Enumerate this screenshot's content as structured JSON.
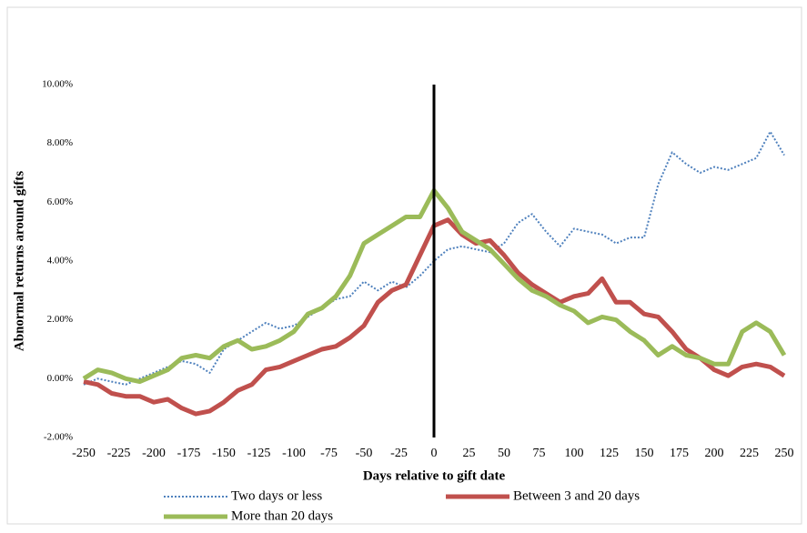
{
  "chart_data": {
    "type": "line",
    "x_label": "Days relative to gift date",
    "y_label": "Abnormal returns around gifts",
    "x": [
      -250,
      -240,
      -230,
      -220,
      -210,
      -200,
      -190,
      -180,
      -170,
      -160,
      -150,
      -140,
      -130,
      -120,
      -110,
      -100,
      -90,
      -80,
      -70,
      -60,
      -50,
      -40,
      -30,
      -20,
      -10,
      0,
      10,
      20,
      30,
      40,
      50,
      60,
      70,
      80,
      90,
      100,
      110,
      120,
      130,
      140,
      150,
      160,
      170,
      180,
      190,
      200,
      210,
      220,
      230,
      240,
      250
    ],
    "series": [
      {
        "name": "Two days or less",
        "color": "#4f81bd",
        "style": "dotted",
        "values": [
          -0.2,
          0,
          -0.1,
          -0.2,
          0,
          0.2,
          0.4,
          0.6,
          0.5,
          0.2,
          1.0,
          1.3,
          1.6,
          1.9,
          1.7,
          1.8,
          2.1,
          2.4,
          2.7,
          2.8,
          3.3,
          3.0,
          3.3,
          3.1,
          3.5,
          4.0,
          4.4,
          4.5,
          4.4,
          4.3,
          4.6,
          5.3,
          5.6,
          5.0,
          4.5,
          5.1,
          5.0,
          4.9,
          4.6,
          4.8,
          4.8,
          6.6,
          7.7,
          7.3,
          7.0,
          7.2,
          7.1,
          7.3,
          7.5,
          8.4,
          7.6
        ]
      },
      {
        "name": "Between 3 and 20 days",
        "color": "#c0504d",
        "style": "solid",
        "values": [
          -0.1,
          -0.2,
          -0.5,
          -0.6,
          -0.6,
          -0.8,
          -0.7,
          -1.0,
          -1.2,
          -1.1,
          -0.8,
          -0.4,
          -0.2,
          0.3,
          0.4,
          0.6,
          0.8,
          1.0,
          1.1,
          1.4,
          1.8,
          2.6,
          3.0,
          3.2,
          4.2,
          5.2,
          5.4,
          4.9,
          4.6,
          4.7,
          4.2,
          3.6,
          3.2,
          2.9,
          2.6,
          2.8,
          2.9,
          3.4,
          2.6,
          2.6,
          2.2,
          2.1,
          1.6,
          1.0,
          0.7,
          0.3,
          0.1,
          0.4,
          0.5,
          0.4,
          0.1
        ]
      },
      {
        "name": "More than 20 days",
        "color": "#9bbb59",
        "style": "solid",
        "values": [
          0,
          0.3,
          0.2,
          0,
          -0.1,
          0.1,
          0.3,
          0.7,
          0.8,
          0.7,
          1.1,
          1.3,
          1.0,
          1.1,
          1.3,
          1.6,
          2.2,
          2.4,
          2.8,
          3.5,
          4.6,
          4.9,
          5.2,
          5.5,
          5.5,
          6.4,
          5.8,
          5.0,
          4.7,
          4.4,
          3.9,
          3.4,
          3.0,
          2.8,
          2.5,
          2.3,
          1.9,
          2.1,
          2.0,
          1.6,
          1.3,
          0.8,
          1.1,
          0.8,
          0.7,
          0.5,
          0.5,
          1.6,
          1.9,
          1.6,
          0.8
        ]
      }
    ],
    "xlim": [
      -250,
      250
    ],
    "xticks": [
      -250,
      -225,
      -200,
      -175,
      -150,
      -125,
      -100,
      -75,
      -50,
      -25,
      0,
      25,
      50,
      75,
      100,
      125,
      150,
      175,
      200,
      225,
      250
    ],
    "ylim": [
      -2,
      10
    ],
    "yticks": [
      {
        "value": -2,
        "label": "-2.00%"
      },
      {
        "value": 0,
        "label": "0.00%"
      },
      {
        "value": 2,
        "label": "2.00%"
      },
      {
        "value": 4,
        "label": "4.00%"
      },
      {
        "value": 6,
        "label": "6.00%"
      },
      {
        "value": 8,
        "label": "8.00%"
      },
      {
        "value": 10,
        "label": "10.00%"
      }
    ],
    "grid": false
  }
}
